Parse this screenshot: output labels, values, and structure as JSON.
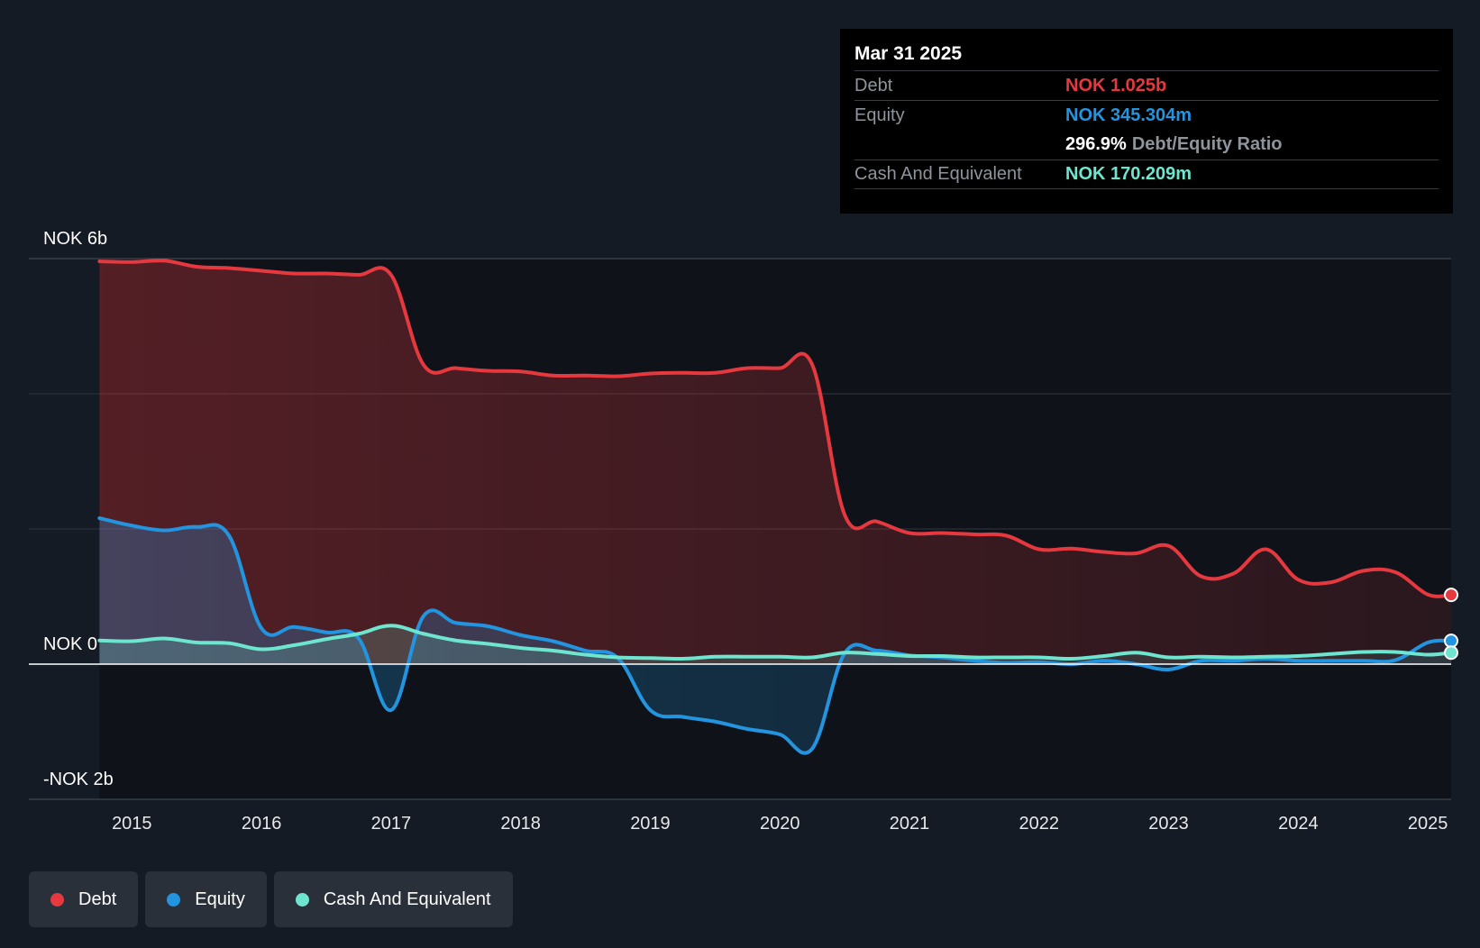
{
  "tooltip": {
    "date": "Mar 31 2025",
    "debt_label": "Debt",
    "debt_value": "NOK 1.025b",
    "equity_label": "Equity",
    "equity_value": "NOK 345.304m",
    "ratio_value": "296.9%",
    "ratio_label": "Debt/Equity Ratio",
    "cash_label": "Cash And Equivalent",
    "cash_value": "NOK 170.209m"
  },
  "legend": [
    {
      "label": "Debt",
      "color": "#e5383f"
    },
    {
      "label": "Equity",
      "color": "#2394df"
    },
    {
      "label": "Cash And Equivalent",
      "color": "#6ee5cf"
    }
  ],
  "colors": {
    "debt": "#e5383f",
    "equity": "#2394df",
    "cash": "#6ee5cf",
    "background": "#151b24",
    "plot_background": "#0f1319"
  },
  "chart_data": {
    "type": "area",
    "title": "",
    "xlabel": "",
    "ylabel": "",
    "y_unit": "NOK",
    "ylim": [
      -2.0,
      6.0
    ],
    "y_tick_labels": [
      {
        "value": 6,
        "label": "NOK 6b"
      },
      {
        "value": 0,
        "label": "NOK 0"
      },
      {
        "value": -2,
        "label": "-NOK 2b"
      }
    ],
    "x_ticks": [
      2015,
      2016,
      2017,
      2018,
      2019,
      2020,
      2021,
      2022,
      2023,
      2024,
      2025
    ],
    "xlim": [
      2014.65,
      2025.18
    ],
    "series": [
      {
        "name": "Debt",
        "key": "debt",
        "points": [
          [
            2014.75,
            5.96
          ],
          [
            2015.0,
            5.95
          ],
          [
            2015.25,
            5.97
          ],
          [
            2015.5,
            5.88
          ],
          [
            2015.75,
            5.86
          ],
          [
            2016.0,
            5.82
          ],
          [
            2016.25,
            5.78
          ],
          [
            2016.5,
            5.78
          ],
          [
            2016.75,
            5.76
          ],
          [
            2017.0,
            5.76
          ],
          [
            2017.25,
            4.43
          ],
          [
            2017.5,
            4.38
          ],
          [
            2017.75,
            4.34
          ],
          [
            2018.0,
            4.33
          ],
          [
            2018.25,
            4.27
          ],
          [
            2018.5,
            4.27
          ],
          [
            2018.75,
            4.26
          ],
          [
            2019.0,
            4.3
          ],
          [
            2019.25,
            4.31
          ],
          [
            2019.5,
            4.31
          ],
          [
            2019.75,
            4.38
          ],
          [
            2020.0,
            4.38
          ],
          [
            2020.25,
            4.43
          ],
          [
            2020.5,
            2.21
          ],
          [
            2020.75,
            2.11
          ],
          [
            2021.0,
            1.94
          ],
          [
            2021.25,
            1.94
          ],
          [
            2021.5,
            1.92
          ],
          [
            2021.75,
            1.9
          ],
          [
            2022.0,
            1.7
          ],
          [
            2022.25,
            1.71
          ],
          [
            2022.5,
            1.66
          ],
          [
            2022.75,
            1.64
          ],
          [
            2023.0,
            1.75
          ],
          [
            2023.25,
            1.3
          ],
          [
            2023.5,
            1.34
          ],
          [
            2023.75,
            1.7
          ],
          [
            2024.0,
            1.25
          ],
          [
            2024.25,
            1.21
          ],
          [
            2024.5,
            1.38
          ],
          [
            2024.75,
            1.36
          ],
          [
            2025.0,
            1.03
          ],
          [
            2025.18,
            1.025
          ]
        ]
      },
      {
        "name": "Equity",
        "key": "equity",
        "points": [
          [
            2014.75,
            2.16
          ],
          [
            2015.0,
            2.05
          ],
          [
            2015.25,
            1.98
          ],
          [
            2015.5,
            2.03
          ],
          [
            2015.75,
            1.9
          ],
          [
            2016.0,
            0.53
          ],
          [
            2016.25,
            0.55
          ],
          [
            2016.5,
            0.47
          ],
          [
            2016.75,
            0.38
          ],
          [
            2017.0,
            -0.68
          ],
          [
            2017.25,
            0.71
          ],
          [
            2017.5,
            0.61
          ],
          [
            2017.75,
            0.56
          ],
          [
            2018.0,
            0.43
          ],
          [
            2018.25,
            0.34
          ],
          [
            2018.5,
            0.2
          ],
          [
            2018.75,
            0.09
          ],
          [
            2019.0,
            -0.68
          ],
          [
            2019.25,
            -0.78
          ],
          [
            2019.5,
            -0.85
          ],
          [
            2019.75,
            -0.96
          ],
          [
            2020.0,
            -1.04
          ],
          [
            2020.25,
            -1.25
          ],
          [
            2020.5,
            0.16
          ],
          [
            2020.75,
            0.2
          ],
          [
            2021.0,
            0.13
          ],
          [
            2021.25,
            0.1
          ],
          [
            2021.5,
            0.05
          ],
          [
            2021.75,
            0.02
          ],
          [
            2022.0,
            0.03
          ],
          [
            2022.25,
            0.0
          ],
          [
            2022.5,
            0.05
          ],
          [
            2022.75,
            0.0
          ],
          [
            2023.0,
            -0.08
          ],
          [
            2023.25,
            0.05
          ],
          [
            2023.5,
            0.05
          ],
          [
            2023.75,
            0.08
          ],
          [
            2024.0,
            0.05
          ],
          [
            2024.25,
            0.05
          ],
          [
            2024.5,
            0.05
          ],
          [
            2024.75,
            0.06
          ],
          [
            2025.0,
            0.32
          ],
          [
            2025.18,
            0.345
          ]
        ]
      },
      {
        "name": "Cash And Equivalent",
        "key": "cash",
        "points": [
          [
            2014.75,
            0.35
          ],
          [
            2015.0,
            0.34
          ],
          [
            2015.25,
            0.38
          ],
          [
            2015.5,
            0.32
          ],
          [
            2015.75,
            0.31
          ],
          [
            2016.0,
            0.22
          ],
          [
            2016.25,
            0.28
          ],
          [
            2016.5,
            0.37
          ],
          [
            2016.75,
            0.45
          ],
          [
            2017.0,
            0.57
          ],
          [
            2017.25,
            0.45
          ],
          [
            2017.5,
            0.35
          ],
          [
            2017.75,
            0.3
          ],
          [
            2018.0,
            0.24
          ],
          [
            2018.25,
            0.2
          ],
          [
            2018.5,
            0.14
          ],
          [
            2018.75,
            0.1
          ],
          [
            2019.0,
            0.09
          ],
          [
            2019.25,
            0.08
          ],
          [
            2019.5,
            0.11
          ],
          [
            2019.75,
            0.11
          ],
          [
            2020.0,
            0.11
          ],
          [
            2020.25,
            0.1
          ],
          [
            2020.5,
            0.17
          ],
          [
            2020.75,
            0.15
          ],
          [
            2021.0,
            0.12
          ],
          [
            2021.25,
            0.12
          ],
          [
            2021.5,
            0.1
          ],
          [
            2021.75,
            0.1
          ],
          [
            2022.0,
            0.1
          ],
          [
            2022.25,
            0.08
          ],
          [
            2022.5,
            0.12
          ],
          [
            2022.75,
            0.17
          ],
          [
            2023.0,
            0.1
          ],
          [
            2023.25,
            0.11
          ],
          [
            2023.5,
            0.1
          ],
          [
            2023.75,
            0.11
          ],
          [
            2024.0,
            0.12
          ],
          [
            2024.25,
            0.15
          ],
          [
            2024.5,
            0.18
          ],
          [
            2024.75,
            0.18
          ],
          [
            2025.0,
            0.14
          ],
          [
            2025.18,
            0.17
          ]
        ]
      }
    ]
  }
}
